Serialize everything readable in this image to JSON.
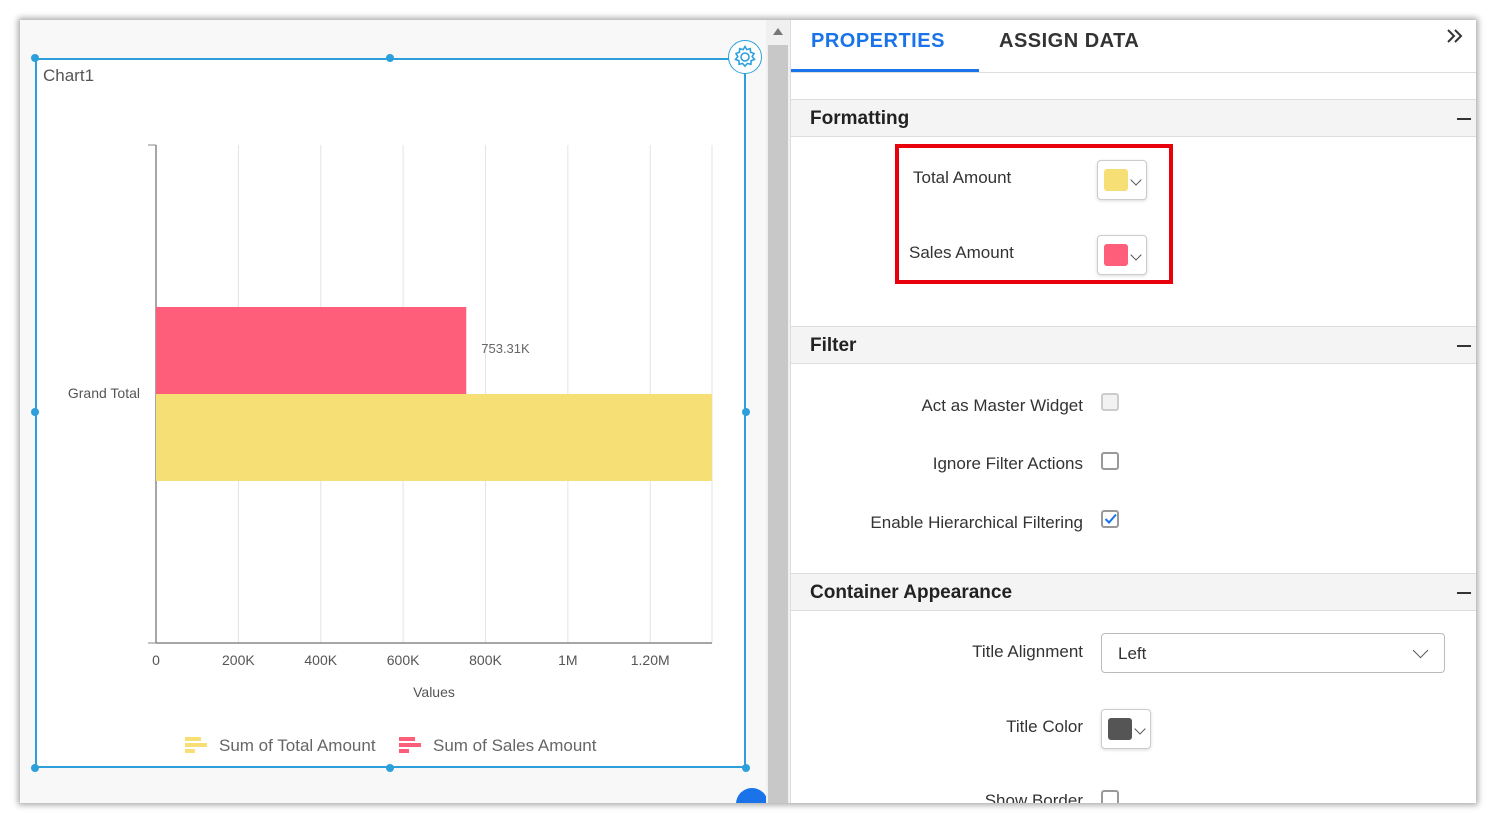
{
  "widget": {
    "title": "Chart1"
  },
  "chart_data": {
    "type": "bar",
    "orientation": "horizontal",
    "categories": [
      "Grand Total"
    ],
    "series": [
      {
        "name": "Sum of Total Amount",
        "color": "#f6df74",
        "values": [
          1350000
        ]
      },
      {
        "name": "Sum of Sales Amount",
        "color": "#ff5e7a",
        "values": [
          753310
        ],
        "data_label": "753.31K"
      }
    ],
    "x_ticks": [
      "0",
      "200K",
      "400K",
      "600K",
      "800K",
      "1M",
      "1.20M"
    ],
    "xlim": [
      0,
      1350000
    ],
    "xlabel": "Values",
    "grid": true,
    "legend_position": "bottom"
  },
  "tabs": {
    "properties": "PROPERTIES",
    "assign_data": "ASSIGN DATA",
    "collapse_icon": "double-chevron-right"
  },
  "formatting": {
    "title": "Formatting",
    "total_amount_label": "Total Amount",
    "total_amount_color": "#f6df74",
    "sales_amount_label": "Sales Amount",
    "sales_amount_color": "#ff5e7a"
  },
  "filter": {
    "title": "Filter",
    "master_label": "Act as Master Widget",
    "master_checked": false,
    "ignore_label": "Ignore Filter Actions",
    "ignore_checked": false,
    "hier_label": "Enable Hierarchical Filtering",
    "hier_checked": true
  },
  "container": {
    "title": "Container Appearance",
    "title_alignment_label": "Title Alignment",
    "title_alignment_value": "Left",
    "title_color_label": "Title Color",
    "title_color": "#555555",
    "show_border_label": "Show Border"
  }
}
